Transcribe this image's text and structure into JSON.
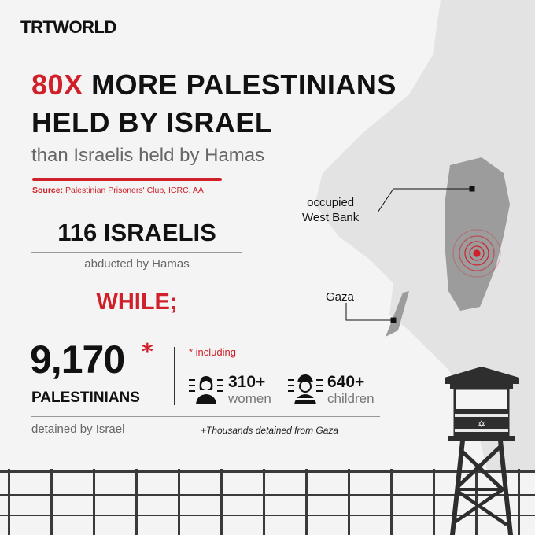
{
  "brand": {
    "logo": "TRTWORLD"
  },
  "headline": {
    "highlight": "80X",
    "line1_rest": " MORE PALESTINIANS",
    "line2": "HELD BY ISRAEL",
    "subtitle": "than Israelis held by Hamas"
  },
  "source": {
    "label": "Source:",
    "text": " Palestinian Prisoners' Club, ICRC, AA"
  },
  "israelis": {
    "count": "116 ISRAELIS",
    "caption": "abducted by Hamas"
  },
  "connector": "WHILE;",
  "palestinians": {
    "count": "9,170",
    "asterisk": "*",
    "label": "PALESTINIANS",
    "caption": "detained by Israel"
  },
  "including": {
    "label": "* including",
    "women": {
      "value": "310+",
      "label": "women"
    },
    "children": {
      "value": "640+",
      "label": "children"
    },
    "note": "+Thousands detained from Gaza"
  },
  "map": {
    "west_bank_label": "occupied\nWest Bank",
    "gaza_label": "Gaza"
  },
  "colors": {
    "accent": "#d0202a",
    "map_land": "#e2e2e2",
    "map_highlight": "#9c9c9c"
  }
}
